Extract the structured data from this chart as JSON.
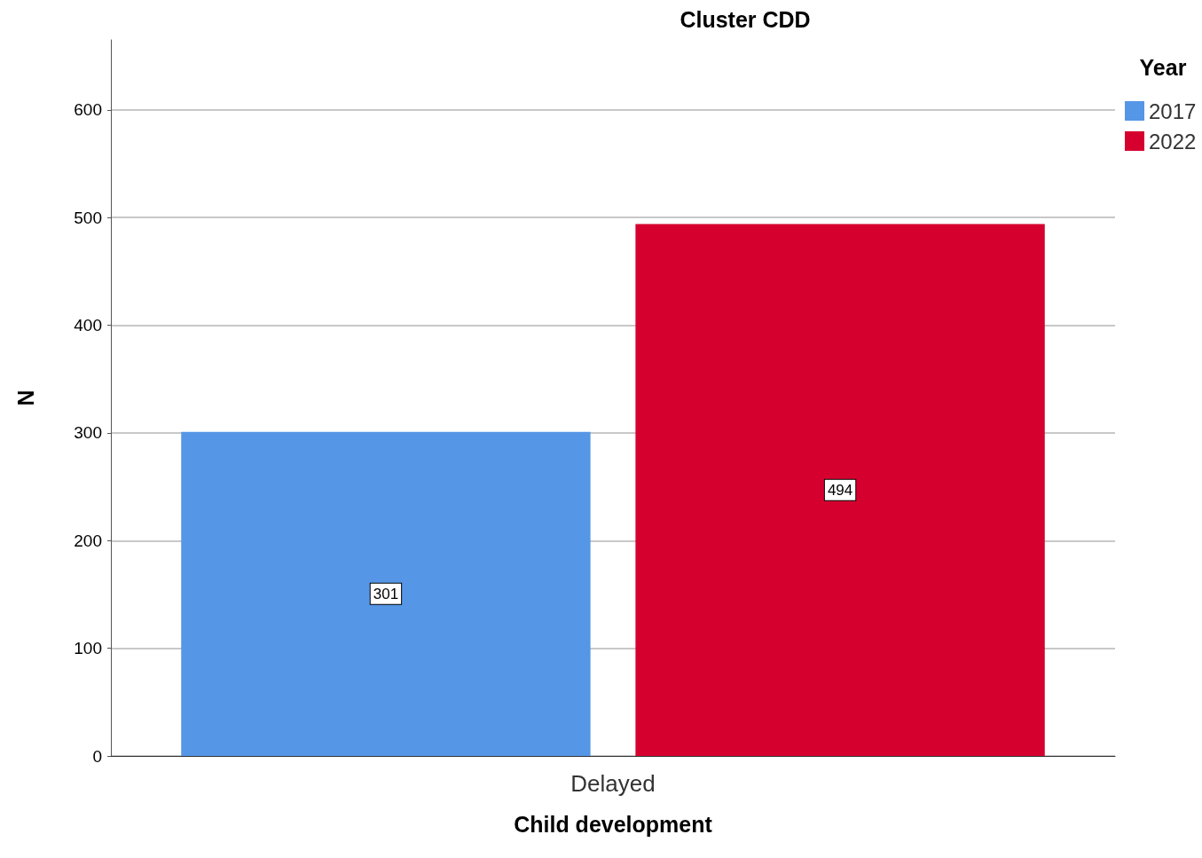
{
  "chart_data": {
    "type": "bar",
    "title": "Cluster CDD",
    "xlabel": "Child development",
    "ylabel": "N",
    "legend_title": "Year",
    "categories": [
      "Delayed"
    ],
    "series": [
      {
        "name": "2017",
        "color": "#5596e6",
        "values": [
          301
        ]
      },
      {
        "name": "2022",
        "color": "#d6002f",
        "values": [
          494
        ]
      }
    ],
    "ylim": [
      0,
      665
    ],
    "yticks": [
      0,
      100,
      200,
      300,
      400,
      500,
      600
    ],
    "grid": "y",
    "legend": "top right",
    "data_labels": true
  }
}
